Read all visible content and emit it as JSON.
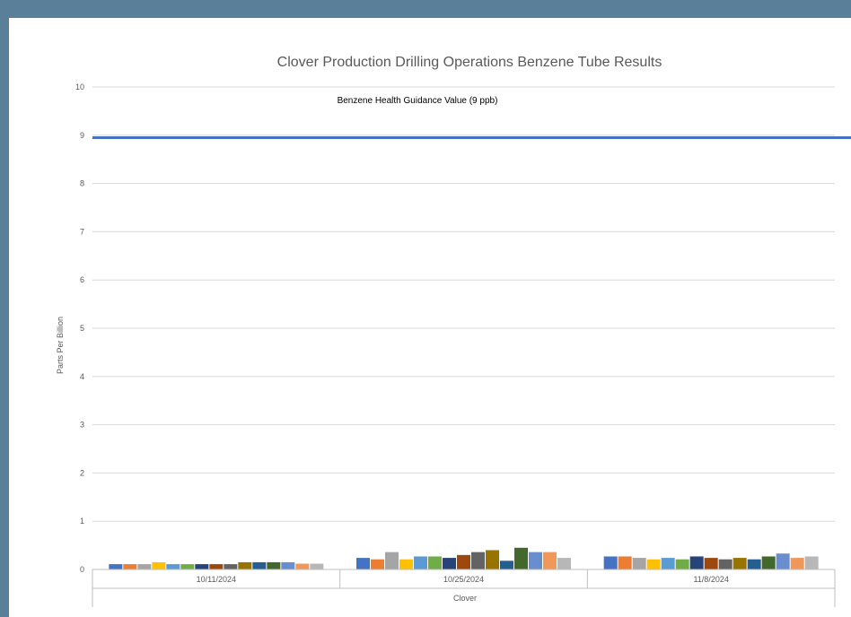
{
  "chart_data": {
    "type": "bar",
    "title": "Clover Production Drilling Operations Benzene Tube Results",
    "xlabel": "Clover",
    "ylabel": "Parts Per Billion",
    "ylim": [
      0,
      10
    ],
    "yticks": [
      0,
      1,
      2,
      3,
      4,
      5,
      6,
      7,
      8,
      9,
      10
    ],
    "categories": [
      "10/11/2024",
      "10/25/2024",
      "11/8/2024"
    ],
    "legend": "none",
    "grid": true,
    "reference_line": {
      "label": "Benzene Health Guidance Value (9 ppb)",
      "value": 8.95,
      "color": "#4472c4"
    },
    "colors": [
      "#4472c4",
      "#ed7d31",
      "#a5a5a5",
      "#ffc000",
      "#5b9bd5",
      "#70ad47",
      "#264478",
      "#9e480e",
      "#636363",
      "#997300",
      "#255e91",
      "#43682b",
      "#698ed0",
      "#f1975a",
      "#b7b7b7"
    ],
    "values_by_category": [
      [
        0.11,
        0.11,
        0.11,
        0.15,
        0.11,
        0.11,
        0.11,
        0.11,
        0.11,
        0.15,
        0.15,
        0.15,
        0.15,
        0.12,
        0.12
      ],
      [
        0.24,
        0.21,
        0.36,
        0.21,
        0.27,
        0.27,
        0.24,
        0.3,
        0.36,
        0.4,
        0.18,
        0.45,
        0.36,
        0.36,
        0.24
      ],
      [
        0.27,
        0.27,
        0.24,
        0.21,
        0.24,
        0.21,
        0.27,
        0.24,
        0.21,
        0.24,
        0.21,
        0.27,
        0.33,
        0.24,
        0.27
      ]
    ]
  }
}
